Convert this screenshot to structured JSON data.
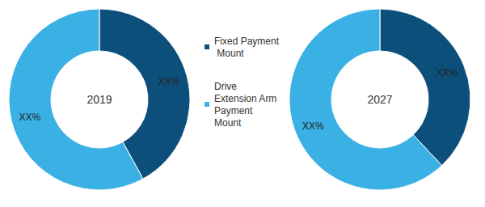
{
  "chart_data": [
    {
      "type": "pie",
      "title": "2019",
      "categories": [
        "Fixed Payment Mount",
        "Drive Extension Arm Payment Mount"
      ],
      "values": [
        42,
        58
      ],
      "value_labels": [
        "XX%",
        "XX%"
      ],
      "colors": [
        "#0d4f7b",
        "#3bb0e4"
      ],
      "data_labels": true,
      "legend": "center"
    },
    {
      "type": "pie",
      "title": "2027",
      "categories": [
        "Fixed Payment Mount",
        "Drive Extension Arm Payment Mount"
      ],
      "values": [
        38,
        62
      ],
      "value_labels": [
        "XX%",
        "XX%"
      ],
      "colors": [
        "#0d4f7b",
        "#3bb0e4"
      ],
      "data_labels": true
    }
  ]
}
